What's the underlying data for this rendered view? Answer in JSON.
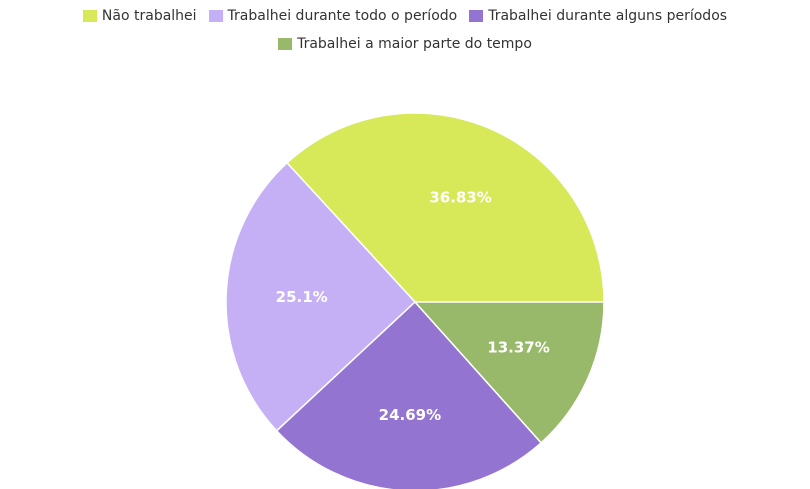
{
  "chart_data": {
    "type": "pie",
    "categories": [
      "Não trabalhei",
      "Trabalhei durante todo o período",
      "Trabalhei durante alguns períodos",
      "Trabalhei a maior parte do tempo"
    ],
    "values": [
      36.83,
      25.1,
      24.69,
      13.37
    ],
    "value_labels": [
      "36.83%",
      "25.1%",
      "24.69%",
      "13.37%"
    ],
    "colors": [
      "#d7e858",
      "#c5b0f5",
      "#9374d0",
      "#98b86a"
    ],
    "legend": "top"
  }
}
